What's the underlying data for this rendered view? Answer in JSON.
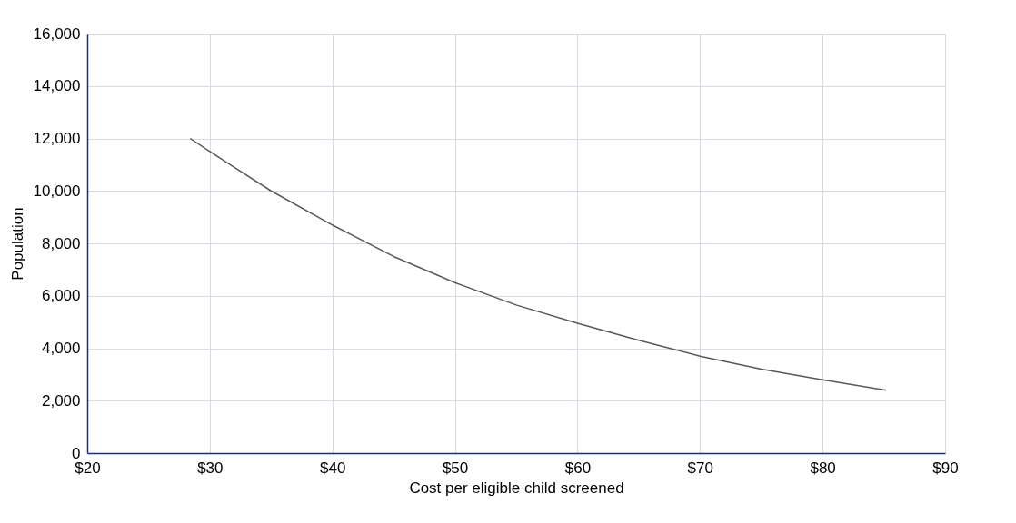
{
  "chart_data": {
    "type": "line",
    "xlabel": "Cost per eligible child screened",
    "ylabel": "Population",
    "x": [
      28.4,
      30,
      35,
      40,
      45,
      50,
      55,
      60,
      65,
      70,
      75,
      80,
      85.2
    ],
    "series": [
      {
        "color": "#595959",
        "values": [
          12000,
          11500,
          10000,
          8700,
          7500,
          6500,
          5650,
          4950,
          4300,
          3700,
          3200,
          2800,
          2400
        ]
      }
    ],
    "xlim": [
      20,
      90
    ],
    "ylim": [
      0,
      16000
    ],
    "xticks": [
      {
        "value": 20,
        "label": "$20"
      },
      {
        "value": 30,
        "label": "$30"
      },
      {
        "value": 40,
        "label": "$40"
      },
      {
        "value": 50,
        "label": "$50"
      },
      {
        "value": 60,
        "label": "$60"
      },
      {
        "value": 70,
        "label": "$70"
      },
      {
        "value": 80,
        "label": "$80"
      },
      {
        "value": 90,
        "label": "$90"
      }
    ],
    "yticks": [
      0,
      {
        "value": 2000,
        "label": "2,000"
      },
      {
        "value": 4000,
        "label": "4,000"
      },
      {
        "value": 6000,
        "label": "6,000"
      },
      {
        "value": 8000,
        "label": "8,000"
      },
      {
        "value": 10000,
        "label": "10,000"
      },
      {
        "value": 12000,
        "label": "12,000"
      },
      {
        "value": 14000,
        "label": "14,000"
      },
      {
        "value": 16000,
        "label": "16,000"
      }
    ],
    "grid": true,
    "marker": "none",
    "line_style": "solid"
  }
}
